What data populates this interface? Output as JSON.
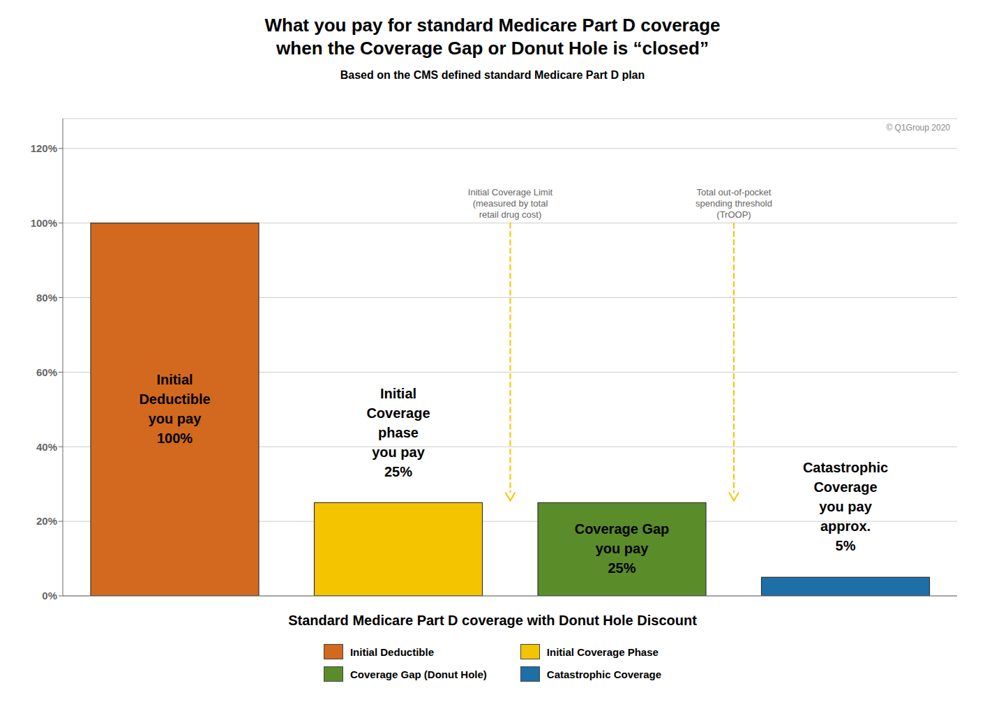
{
  "chart_data": {
    "type": "bar",
    "title": "What you pay for standard Medicare Part D coverage\nwhen the Coverage Gap or Donut Hole is “closed”",
    "subtitle": "Based on the CMS defined standard Medicare Part D plan",
    "x_label": "Standard Medicare Part D coverage with Donut Hole Discount",
    "categories": [
      "Initial Deductible",
      "Initial Coverage Phase",
      "Coverage Gap (Donut Hole)",
      "Catastrophic Coverage"
    ],
    "values": [
      1.0,
      0.25,
      0.25,
      0.05
    ],
    "value_labels": [
      "Initial\nDeductible\nyou pay\n100%",
      "Initial\nCoverage\nphase\nyou pay\n25%",
      "Coverage Gap\nyou pay\n25%",
      "Catastrophic\nCoverage\nyou pay\napprox.\n5%"
    ],
    "data_labels": true,
    "colors": [
      "#D2691E",
      "#F5C400",
      "#5B8C2A",
      "#1E6FA8"
    ],
    "ylim": [
      0,
      1.28
    ],
    "yticks": [
      {
        "value": 0.0,
        "label": "0%"
      },
      {
        "value": 0.2,
        "label": "20%"
      },
      {
        "value": 0.4,
        "label": "40%"
      },
      {
        "value": 0.6,
        "label": "60%"
      },
      {
        "value": 0.8,
        "label": "80%"
      },
      {
        "value": 1.0,
        "label": "100%"
      },
      {
        "value": 1.2,
        "label": "120%"
      }
    ],
    "grid": true,
    "legend": "bottom",
    "tick_labels": "y",
    "annotations": [
      "Initial Coverage Limit\n(measured by total\nretail drug cost)",
      "Total out-of-pocket\nspending threshold\n(TrOOP)",
      "© Q1Group 2020"
    ]
  }
}
